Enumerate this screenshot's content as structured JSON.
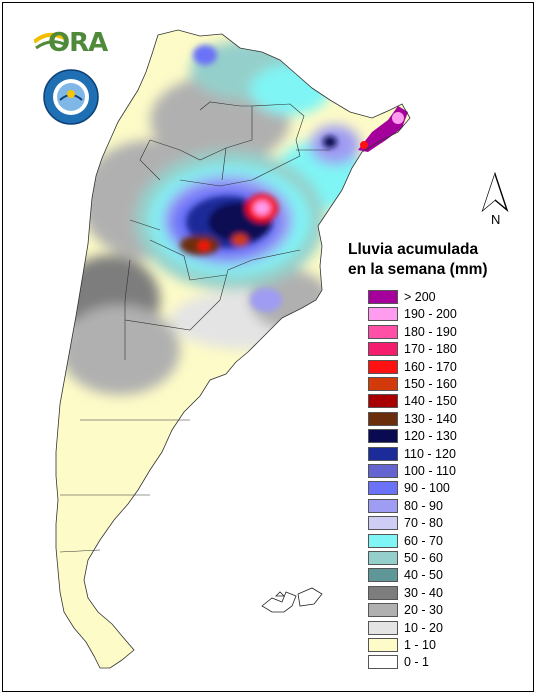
{
  "logos": {
    "ora_text": "ORA",
    "smn_seal_text": "SERVICIO METEOROLOGICO NACIONAL · ARGENTINA"
  },
  "north_arrow": {
    "label": "N"
  },
  "legend": {
    "title_line1": "Lluvia acumulada",
    "title_line2": "en la semana (mm)",
    "items": [
      {
        "label": "> 200",
        "color": "#a6009c"
      },
      {
        "label": "190 - 200",
        "color": "#ff9cf0"
      },
      {
        "label": "180 - 190",
        "color": "#ff4fa6"
      },
      {
        "label": "170 - 180",
        "color": "#f51d6d"
      },
      {
        "label": "160 - 170",
        "color": "#ff1111"
      },
      {
        "label": "150 - 160",
        "color": "#d23a0c"
      },
      {
        "label": "140 - 150",
        "color": "#a80000"
      },
      {
        "label": "130 - 140",
        "color": "#6b2e0c"
      },
      {
        "label": "120 - 130",
        "color": "#0a0a52"
      },
      {
        "label": "110 - 120",
        "color": "#1b2b99"
      },
      {
        "label": "100 - 110",
        "color": "#6565d2"
      },
      {
        "label": "90 - 100",
        "color": "#6b72f7"
      },
      {
        "label": "80 - 90",
        "color": "#9f9cf3"
      },
      {
        "label": "70 - 80",
        "color": "#cfcdf3"
      },
      {
        "label": "60 - 70",
        "color": "#7ff5f5"
      },
      {
        "label": "50 - 60",
        "color": "#95cfcb"
      },
      {
        "label": "40 - 50",
        "color": "#5f9798"
      },
      {
        "label": "30 - 40",
        "color": "#7d7d7d"
      },
      {
        "label": "20 - 30",
        "color": "#b0b0b0"
      },
      {
        "label": "10 - 20",
        "color": "#e4e4e4"
      },
      {
        "label": "1 - 10",
        "color": "#fdfbc7"
      },
      {
        "label": "0 - 1",
        "color": "#ffffff"
      }
    ]
  }
}
